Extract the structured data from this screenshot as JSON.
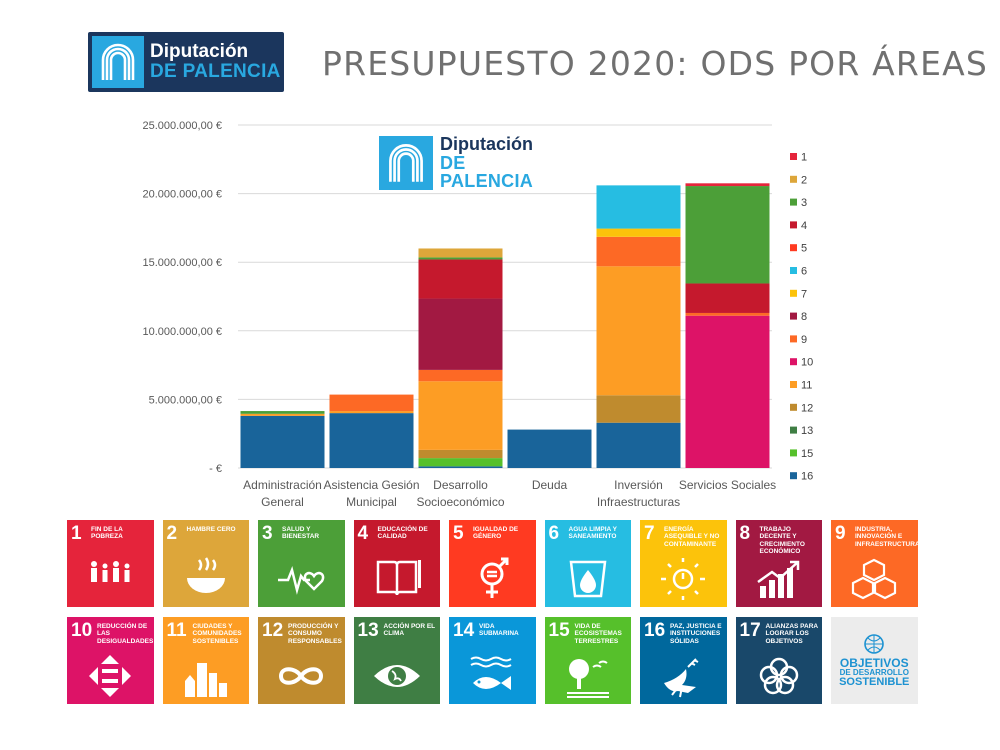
{
  "header": {
    "title": "PRESUPUESTO 2020: ODS POR ÁREAS",
    "logo": {
      "line1": "Diputación",
      "line2": "DE PALENCIA"
    }
  },
  "chart_data": {
    "type": "bar",
    "stacked": true,
    "title": "",
    "xlabel": "",
    "ylabel": "",
    "ylim": [
      0,
      25000000
    ],
    "yticks": [
      0,
      5000000,
      10000000,
      15000000,
      20000000,
      25000000
    ],
    "ytick_labels": [
      "-  €",
      "5.000.000,00 €",
      "10.000.000,00 €",
      "15.000.000,00 €",
      "20.000.000,00 €",
      "25.000.000,00 €"
    ],
    "grid": true,
    "legend_position": "right",
    "categories": [
      [
        "Administración",
        "General"
      ],
      [
        "Asistencia Gesión",
        "Municipal"
      ],
      [
        "Desarrollo",
        "Socioeconómico"
      ],
      [
        "Deuda"
      ],
      [
        "Inversión",
        "Infraestructuras"
      ],
      [
        "Servicios Sociales"
      ]
    ],
    "series": [
      {
        "name": "16",
        "color": "#19649a",
        "values": [
          3800000,
          4000000,
          120000,
          2800000,
          3300000,
          0
        ]
      },
      {
        "name": "15",
        "color": "#56c02b",
        "values": [
          0,
          0,
          600000,
          0,
          0,
          0
        ]
      },
      {
        "name": "13",
        "color": "#3f7e44",
        "values": [
          0,
          0,
          0,
          0,
          0,
          0
        ]
      },
      {
        "name": "12",
        "color": "#bf8b2e",
        "values": [
          0,
          0,
          600000,
          0,
          2000000,
          0
        ]
      },
      {
        "name": "11",
        "color": "#fd9d24",
        "values": [
          150000,
          150000,
          5000000,
          0,
          9400000,
          0
        ]
      },
      {
        "name": "10",
        "color": "#dd1367",
        "values": [
          0,
          0,
          0,
          0,
          0,
          11100000
        ]
      },
      {
        "name": "9",
        "color": "#fd6925",
        "values": [
          0,
          1200000,
          830000,
          0,
          2150000,
          200000
        ]
      },
      {
        "name": "8",
        "color": "#a21942",
        "values": [
          0,
          0,
          5200000,
          0,
          0,
          0
        ]
      },
      {
        "name": "7",
        "color": "#fcc30b",
        "values": [
          0,
          0,
          0,
          0,
          600000,
          0
        ]
      },
      {
        "name": "6",
        "color": "#26bde2",
        "values": [
          0,
          0,
          0,
          0,
          3150000,
          0
        ]
      },
      {
        "name": "5",
        "color": "#ff3a21",
        "values": [
          0,
          0,
          0,
          0,
          0,
          0
        ]
      },
      {
        "name": "4",
        "color": "#c5192d",
        "values": [
          0,
          0,
          2850000,
          0,
          0,
          2150000
        ]
      },
      {
        "name": "3",
        "color": "#4c9f38",
        "values": [
          200000,
          0,
          150000,
          0,
          0,
          7100000
        ]
      },
      {
        "name": "2",
        "color": "#dda63a",
        "values": [
          0,
          0,
          650000,
          0,
          0,
          0
        ]
      },
      {
        "name": "1",
        "color": "#e5243b",
        "values": [
          0,
          0,
          0,
          0,
          0,
          200000
        ]
      }
    ],
    "legend_order": [
      "1",
      "2",
      "3",
      "4",
      "5",
      "6",
      "7",
      "8",
      "9",
      "10",
      "11",
      "12",
      "13",
      "15",
      "16"
    ]
  },
  "sdg_tiles": [
    {
      "number": "1",
      "label": "Fin de la pobreza",
      "color": "#e5243b",
      "icon": "family-icon"
    },
    {
      "number": "2",
      "label": "Hambre cero",
      "color": "#dda63a",
      "icon": "bowl-icon"
    },
    {
      "number": "3",
      "label": "Salud y bienestar",
      "color": "#4c9f38",
      "icon": "heartbeat-icon"
    },
    {
      "number": "4",
      "label": "Educación de calidad",
      "color": "#c5192d",
      "icon": "book-icon"
    },
    {
      "number": "5",
      "label": "Igualdad de género",
      "color": "#ff3a21",
      "icon": "gender-equality-icon"
    },
    {
      "number": "6",
      "label": "Agua limpia y saneamiento",
      "color": "#26bde2",
      "icon": "water-drop-icon"
    },
    {
      "number": "7",
      "label": "Energía asequible y no contaminante",
      "color": "#fcc30b",
      "icon": "power-sun-icon"
    },
    {
      "number": "8",
      "label": "Trabajo decente y crecimiento económico",
      "color": "#a21942",
      "icon": "growth-chart-icon"
    },
    {
      "number": "9",
      "label": "Industria, innovación e infraestructura",
      "color": "#fd6925",
      "icon": "cubes-icon"
    },
    {
      "number": "10",
      "label": "Reducción de las desigualdades",
      "color": "#dd1367",
      "icon": "arrows-icon"
    },
    {
      "number": "11",
      "label": "Ciudades y comunidades sostenibles",
      "color": "#fd9d24",
      "icon": "buildings-icon"
    },
    {
      "number": "12",
      "label": "Producción y consumo responsables",
      "color": "#bf8b2e",
      "icon": "infinity-icon"
    },
    {
      "number": "13",
      "label": "Acción por el clima",
      "color": "#3f7e44",
      "icon": "eye-globe-icon"
    },
    {
      "number": "14",
      "label": "Vida submarina",
      "color": "#0a97d9",
      "icon": "fish-icon"
    },
    {
      "number": "15",
      "label": "Vida de ecosistemas terrestres",
      "color": "#56c02b",
      "icon": "tree-icon"
    },
    {
      "number": "16",
      "label": "Paz, justicia e instituciones sólidas",
      "color": "#00689d",
      "icon": "dove-icon"
    },
    {
      "number": "17",
      "label": "Alianzas para lograr los objetivos",
      "color": "#19486a",
      "icon": "rings-icon"
    }
  ],
  "sdg_logo": {
    "line1": "OBJETIVOS",
    "line2": "DE DESARROLLO",
    "line3": "SOSTENIBLE",
    "icon": "un-emblem-icon"
  }
}
